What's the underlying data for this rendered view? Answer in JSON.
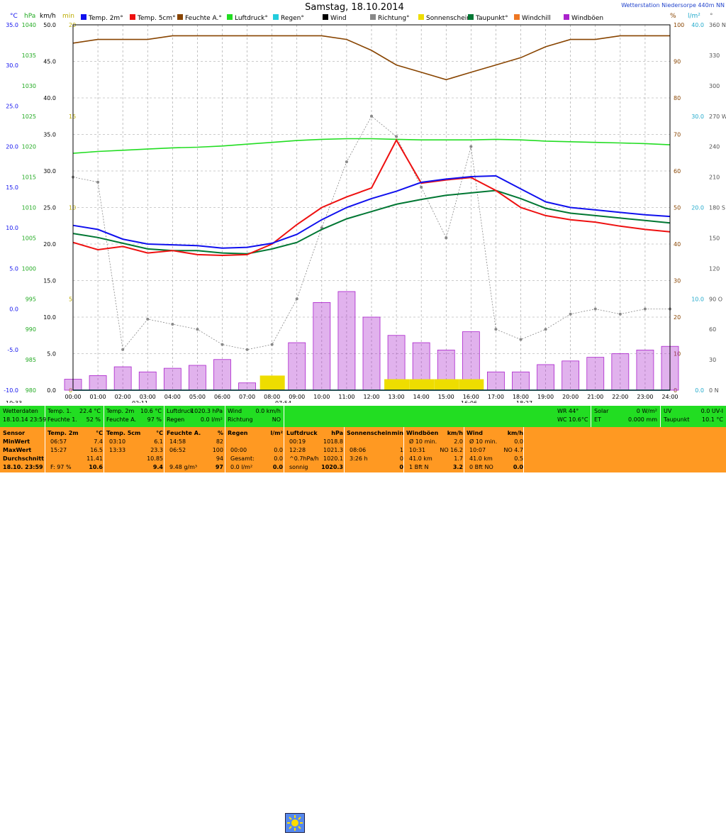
{
  "header": {
    "title": "Samstag, 18.10.2014",
    "station": "Wetterstation Niedersorpe 440m NN"
  },
  "units": {
    "temp": "°C",
    "pressure": "hPa",
    "wind": "km/h",
    "sun": "min",
    "humidity": "%",
    "rain": "l/m²",
    "direction": "°"
  },
  "legend": [
    {
      "label": "Temp. 2m°",
      "color": "#1010ee"
    },
    {
      "label": "Temp. 5cm°",
      "color": "#ee1010"
    },
    {
      "label": "Feuchte A.°",
      "color": "#884400"
    },
    {
      "label": "Luftdruck°",
      "color": "#22dd22"
    },
    {
      "label": "Regen°",
      "color": "#22ccdd"
    },
    {
      "label": "Wind",
      "color": "#000000"
    },
    {
      "label": "Richtung°",
      "color": "#888888"
    },
    {
      "label": "Sonnenschein",
      "color": "#eedd00"
    },
    {
      "label": "Taupunkt°",
      "color": "#007733"
    },
    {
      "label": "Windchill",
      "color": "#ee7722"
    },
    {
      "label": "Windböen",
      "color": "#aa22cc"
    }
  ],
  "axes": {
    "temp_ticks": [
      "35.0",
      "30.0",
      "25.0",
      "20.0",
      "15.0",
      "10.0",
      "5.0",
      "0.0",
      "-5.0",
      "-10.0"
    ],
    "pressure_ticks": [
      "1040",
      "1035",
      "1030",
      "1025",
      "1020",
      "1015",
      "1010",
      "1005",
      "1000",
      "995",
      "990",
      "985",
      "980"
    ],
    "wind_ticks": [
      "50.0",
      "45.0",
      "40.0",
      "35.0",
      "30.0",
      "25.0",
      "20.0",
      "15.0",
      "10.0",
      "5.0",
      "0.0"
    ],
    "sun_ticks": [
      "20",
      "15",
      "10",
      "5",
      "0"
    ],
    "humidity_ticks": [
      "100",
      "90",
      "80",
      "70",
      "60",
      "50",
      "40",
      "30",
      "20",
      "10",
      "0"
    ],
    "rain_ticks": [
      "40.0",
      "30.0",
      "20.0",
      "10.0",
      "0.0"
    ],
    "dir_ticks": [
      "360 N",
      "330",
      "300",
      "270 W",
      "240",
      "210",
      "180 S",
      "150",
      "120",
      "90 O",
      "60",
      "30",
      "0 N"
    ],
    "time_ticks": [
      "00:00",
      "01:00",
      "02:00",
      "03:00",
      "04:00",
      "05:00",
      "06:00",
      "07:00",
      "08:00",
      "09:00",
      "10:00",
      "11:00",
      "12:00",
      "13:00",
      "14:00",
      "15:00",
      "16:00",
      "17:00",
      "18:00",
      "19:00",
      "20:00",
      "21:00",
      "22:00",
      "23:00",
      "24:00"
    ],
    "sub_labels": [
      {
        "t": "10:33"
      },
      {
        "t": "02:11"
      },
      {
        "t": "07:54"
      },
      {
        "t": "16:06"
      },
      {
        "t": "18:27"
      }
    ]
  },
  "chart_data": {
    "type": "line",
    "title": "Samstag, 18.10.2014",
    "x_unit": "hour",
    "temp_range": [
      -10,
      35
    ],
    "pressure_range": [
      980,
      1040
    ],
    "wind_range": [
      0,
      50
    ],
    "humidity_range": [
      0,
      100
    ],
    "direction_range": [
      0,
      360
    ],
    "x": [
      0,
      1,
      2,
      3,
      4,
      5,
      6,
      7,
      8,
      9,
      10,
      11,
      12,
      13,
      14,
      15,
      16,
      17,
      18,
      19,
      20,
      21,
      22,
      23,
      24
    ],
    "series": [
      {
        "name": "Temp. 2m°",
        "unit": "°C",
        "values": [
          10.3,
          9.8,
          8.6,
          8.0,
          7.9,
          7.8,
          7.5,
          7.6,
          8.1,
          9.2,
          11.0,
          12.5,
          13.6,
          14.5,
          15.6,
          16.0,
          16.3,
          16.4,
          14.8,
          13.2,
          12.5,
          12.2,
          11.9,
          11.6,
          11.4
        ]
      },
      {
        "name": "Temp. 5cm°",
        "unit": "°C",
        "values": [
          8.2,
          7.3,
          7.7,
          6.9,
          7.2,
          6.7,
          6.6,
          6.7,
          8.0,
          10.4,
          12.5,
          13.8,
          14.9,
          20.8,
          15.5,
          15.9,
          16.2,
          14.6,
          12.5,
          11.5,
          11.0,
          10.7,
          10.2,
          9.8,
          9.5
        ]
      },
      {
        "name": "Taupunkt°",
        "unit": "°C",
        "values": [
          9.3,
          8.8,
          8.1,
          7.4,
          7.2,
          7.2,
          6.9,
          6.8,
          7.4,
          8.2,
          9.8,
          11.1,
          12.0,
          12.9,
          13.5,
          14.0,
          14.3,
          14.6,
          13.6,
          12.4,
          11.8,
          11.5,
          11.2,
          10.9,
          10.6
        ]
      },
      {
        "name": "Feuchte A.°",
        "unit": "%",
        "values": [
          95,
          96,
          96,
          96,
          97,
          97,
          97,
          97,
          97,
          97,
          97,
          96,
          93,
          89,
          87,
          85,
          87,
          89,
          91,
          94,
          96,
          96,
          97,
          97,
          97
        ]
      },
      {
        "name": "Luftdruck°",
        "unit": "hPa",
        "values": [
          1018.9,
          1019.2,
          1019.4,
          1019.6,
          1019.8,
          1019.9,
          1020.1,
          1020.4,
          1020.7,
          1021.0,
          1021.2,
          1021.3,
          1021.3,
          1021.2,
          1021.1,
          1021.1,
          1021.1,
          1021.2,
          1021.1,
          1020.9,
          1020.8,
          1020.7,
          1020.6,
          1020.5,
          1020.3
        ]
      },
      {
        "name": "Richtung°",
        "unit": "°",
        "values": [
          210,
          205,
          40,
          70,
          65,
          60,
          45,
          40,
          45,
          90,
          160,
          225,
          270,
          250,
          200,
          150,
          240,
          60,
          50,
          60,
          75,
          80,
          75,
          80,
          80
        ]
      },
      {
        "name": "Wind",
        "unit": "km/h",
        "values": [
          0,
          0,
          0,
          0,
          0,
          0,
          0,
          0,
          0,
          0,
          0,
          0,
          0,
          0,
          0,
          0,
          0,
          0,
          0,
          0,
          0,
          0,
          0,
          0,
          0
        ]
      },
      {
        "name": "Windböen",
        "unit": "km/h",
        "values": [
          1.5,
          2.0,
          3.2,
          2.5,
          3.0,
          3.4,
          4.2,
          1.0,
          0.5,
          6.5,
          12.0,
          13.5,
          10.0,
          7.5,
          6.5,
          5.5,
          8.0,
          2.5,
          2.5,
          3.5,
          4.0,
          4.5,
          5.0,
          5.5,
          6.0
        ]
      },
      {
        "name": "Sonnenschein",
        "unit": "min",
        "values": [
          0,
          0,
          0,
          0,
          0,
          0,
          0,
          0,
          0.8,
          0,
          0,
          0,
          0,
          0.6,
          0.6,
          0.6,
          0.6,
          0,
          0,
          0,
          0,
          0,
          0,
          0,
          0
        ]
      },
      {
        "name": "Regen°",
        "unit": "l/m²",
        "values": [
          0,
          0,
          0,
          0,
          0,
          0,
          0,
          0,
          0,
          0,
          0,
          0,
          0,
          0,
          0,
          0,
          0,
          0,
          0,
          0,
          0,
          0,
          0,
          0,
          0
        ]
      }
    ]
  },
  "status_bar": {
    "c1": [
      "Wetterdaten",
      "18.10.14 23:59"
    ],
    "c2": [
      "Temp. 1.",
      "Feuchte 1."
    ],
    "c2v": [
      "22.4 °C",
      "52 %"
    ],
    "c3": [
      "Temp. 2m",
      "Feuchte A."
    ],
    "c3v": [
      "10.6 °C",
      "97 %"
    ],
    "c4": [
      "Luftdruck",
      "Regen"
    ],
    "c4v": [
      "1020.3 hPa",
      "0.0 l/m²"
    ],
    "c5": [
      "Wind",
      "Richtung"
    ],
    "c5v": [
      "0.0 km/h",
      "NO"
    ],
    "c6": [
      "WR 44°",
      "WC 10.6°C"
    ],
    "c7": [
      "Solar",
      "ET"
    ],
    "c7v": [
      "0 W/m²",
      "0.000 mm"
    ],
    "c8": [
      "UV",
      "Taupunkt"
    ],
    "c8v": [
      "0.0 UV-I",
      "10.1 °C"
    ]
  },
  "stats": {
    "headers": [
      {
        "label": "Sensor",
        "unit": ""
      },
      {
        "label": "Temp. 2m",
        "unit": "°C"
      },
      {
        "label": "Temp. 5cm",
        "unit": "°C"
      },
      {
        "label": "Feuchte A.",
        "unit": "%"
      },
      {
        "label": "Regen",
        "unit": "l/m²"
      },
      {
        "label": "Luftdruck",
        "unit": "hPa"
      },
      {
        "label": "Sonnenschein",
        "unit": "min"
      },
      {
        "label": "Windböen",
        "unit": "km/h"
      },
      {
        "label": "Wind",
        "unit": "km/h"
      }
    ],
    "row_labels": [
      "MinWert",
      "MaxWert",
      "Durchschnitt",
      "18.10. 23:59"
    ],
    "temp2m": [
      [
        "06:57",
        "7.4"
      ],
      [
        "15:27",
        "16.5"
      ],
      [
        "",
        "11.41"
      ],
      [
        "F: 97 %",
        "10.6"
      ]
    ],
    "temp5cm": [
      [
        "03:10",
        "6.1"
      ],
      [
        "13:33",
        "23.3"
      ],
      [
        "",
        "10.85"
      ],
      [
        "",
        "9.4"
      ]
    ],
    "feuchte": [
      [
        "14:58",
        "82"
      ],
      [
        "06:52",
        "100"
      ],
      [
        "",
        "94"
      ],
      [
        "9.48 g/m³",
        "97"
      ]
    ],
    "regen": [
      [
        "",
        ""
      ],
      [
        "00:00",
        "0.0"
      ],
      [
        "Gesamt:",
        "0.0"
      ],
      [
        "0.0 l/m²",
        "0.0"
      ]
    ],
    "luftdruck": [
      [
        "00:19",
        "1018.8"
      ],
      [
        "12:28",
        "1021.3"
      ],
      [
        "^0.7hPa/h",
        "1020.1"
      ],
      [
        "sonnig",
        "1020.3"
      ]
    ],
    "sonne": [
      [
        "",
        ""
      ],
      [
        "08:06",
        "1"
      ],
      [
        "3:26 h",
        "0"
      ],
      [
        "",
        "0"
      ]
    ],
    "windboen": [
      [
        "Ø 10 min.",
        "2.0"
      ],
      [
        "10:31",
        "NO 16.2"
      ],
      [
        "41.0 km",
        "1.7"
      ],
      [
        "1 Bft N",
        "3.2"
      ]
    ],
    "wind": [
      [
        "Ø 10 min.",
        "0.0"
      ],
      [
        "10:07",
        "NO 4.7"
      ],
      [
        "41.0 km",
        "0.5"
      ],
      [
        "0 Bft NO",
        "0.0"
      ]
    ]
  }
}
